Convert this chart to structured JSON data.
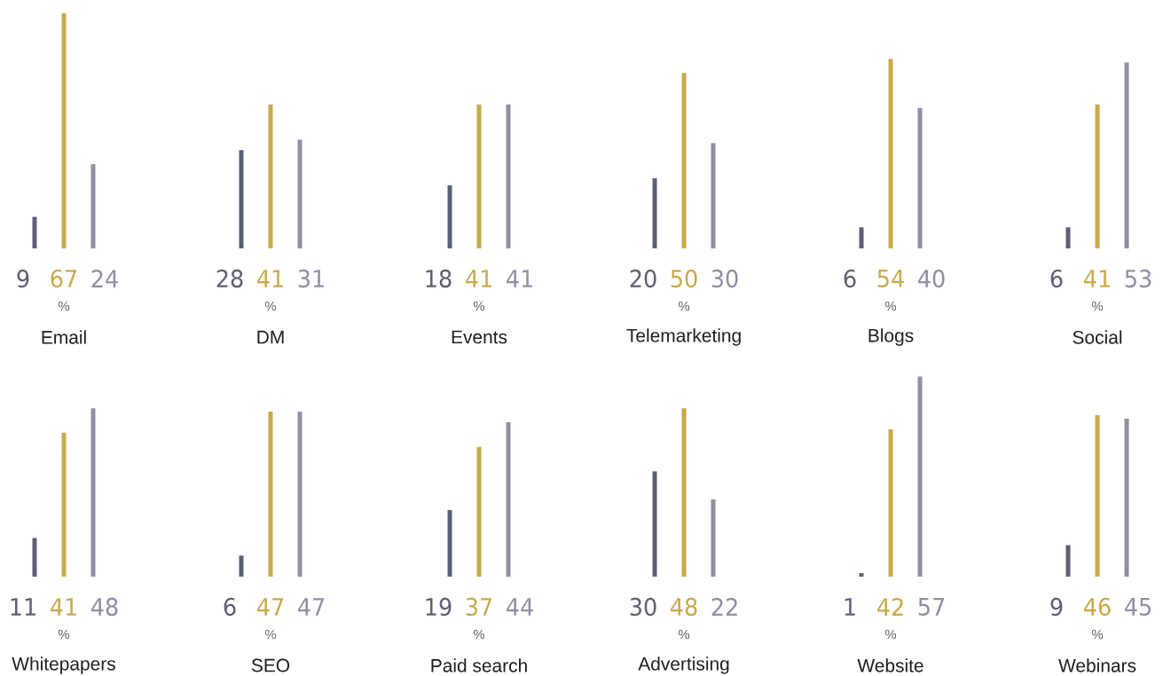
{
  "chart_data": [
    {
      "type": "bar",
      "categories": [
        null,
        null,
        null
      ],
      "values": [
        9,
        67,
        24
      ],
      "colors": [
        "#5c5f75",
        "#c9a949",
        "#8e8fa3"
      ],
      "data_labels": true,
      "xlabel": "Email",
      "annotations": [
        "%"
      ]
    },
    {
      "type": "bar",
      "categories": [
        null,
        null,
        null
      ],
      "values": [
        28,
        41,
        31
      ],
      "colors": [
        "#5c5f75",
        "#c9a949",
        "#8e8fa3"
      ],
      "data_labels": true,
      "xlabel": "DM",
      "annotations": [
        "%"
      ]
    },
    {
      "type": "bar",
      "categories": [
        null,
        null,
        null
      ],
      "values": [
        18,
        41,
        41
      ],
      "colors": [
        "#5c5f75",
        "#c9a949",
        "#8e8fa3"
      ],
      "data_labels": true,
      "xlabel": "Events",
      "annotations": [
        "%"
      ]
    },
    {
      "type": "bar",
      "categories": [
        null,
        null,
        null
      ],
      "values": [
        20,
        50,
        30
      ],
      "colors": [
        "#5c5f75",
        "#c9a949",
        "#8e8fa3"
      ],
      "data_labels": true,
      "xlabel": "Telemarketing",
      "annotations": [
        "%"
      ]
    },
    {
      "type": "bar",
      "categories": [
        null,
        null,
        null
      ],
      "values": [
        6,
        54,
        40
      ],
      "colors": [
        "#5c5f75",
        "#c9a949",
        "#8e8fa3"
      ],
      "data_labels": true,
      "xlabel": "Blogs",
      "annotations": [
        "%"
      ]
    },
    {
      "type": "bar",
      "categories": [
        null,
        null,
        null
      ],
      "values": [
        6,
        41,
        53
      ],
      "colors": [
        "#5c5f75",
        "#c9a949",
        "#8e8fa3"
      ],
      "data_labels": true,
      "xlabel": "Social",
      "annotations": [
        "%"
      ]
    },
    {
      "type": "bar",
      "categories": [
        null,
        null,
        null
      ],
      "values": [
        11,
        41,
        48
      ],
      "colors": [
        "#5c5f75",
        "#c9a949",
        "#8e8fa3"
      ],
      "data_labels": true,
      "xlabel": "Whitepapers",
      "annotations": [
        "%"
      ]
    },
    {
      "type": "bar",
      "categories": [
        null,
        null,
        null
      ],
      "values": [
        6,
        47,
        47
      ],
      "colors": [
        "#5c5f75",
        "#c9a949",
        "#8e8fa3"
      ],
      "data_labels": true,
      "xlabel": "SEO",
      "annotations": [
        "%"
      ]
    },
    {
      "type": "bar",
      "categories": [
        null,
        null,
        null
      ],
      "values": [
        19,
        37,
        44
      ],
      "colors": [
        "#5c5f75",
        "#c9a949",
        "#8e8fa3"
      ],
      "data_labels": true,
      "xlabel": "Paid search",
      "annotations": [
        "%"
      ]
    },
    {
      "type": "bar",
      "categories": [
        null,
        null,
        null
      ],
      "values": [
        30,
        48,
        22
      ],
      "colors": [
        "#5c5f75",
        "#c9a949",
        "#8e8fa3"
      ],
      "data_labels": true,
      "xlabel": "Advertising",
      "annotations": [
        "%"
      ]
    },
    {
      "type": "bar",
      "categories": [
        null,
        null,
        null
      ],
      "values": [
        1,
        42,
        57
      ],
      "colors": [
        "#5c5f75",
        "#c9a949",
        "#8e8fa3"
      ],
      "data_labels": true,
      "xlabel": "Website",
      "annotations": [
        "%"
      ]
    },
    {
      "type": "bar",
      "categories": [
        null,
        null,
        null
      ],
      "values": [
        9,
        46,
        45
      ],
      "colors": [
        "#5c5f75",
        "#c9a949",
        "#8e8fa3"
      ],
      "data_labels": true,
      "xlabel": "Webinars",
      "annotations": [
        "%"
      ]
    }
  ]
}
